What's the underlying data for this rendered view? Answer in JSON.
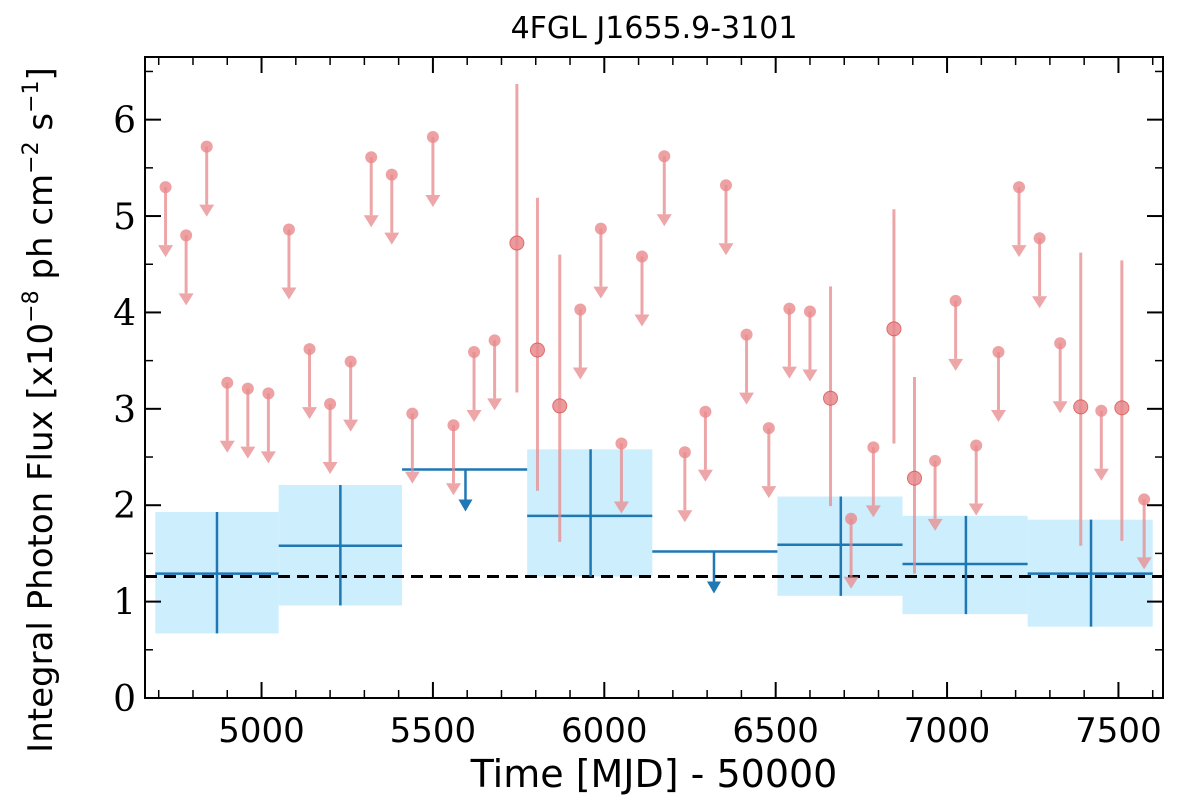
{
  "chart_data": {
    "type": "scatter",
    "title": "4FGL J1655.9-3101",
    "xlabel": "Time [MJD] - 50000",
    "ylabel_prefix": "Integral Photon Flux [x10",
    "ylabel_mid": " ph cm",
    "ylabel_end": " s",
    "ylabel_sup1": "−8",
    "ylabel_sup2": "−2",
    "ylabel_sup3": "−1",
    "ylabel_close": "]",
    "xlim": [
      4660,
      7630
    ],
    "ylim": [
      0,
      6.65
    ],
    "x_ticks": [
      5000,
      5500,
      6000,
      6500,
      7000,
      7500
    ],
    "x_tick_labels": [
      "5000",
      "5500",
      "6000",
      "6500",
      "7000",
      "7500"
    ],
    "y_ticks": [
      0,
      1,
      2,
      3,
      4,
      5,
      6
    ],
    "y_tick_labels": [
      "0",
      "1",
      "2",
      "3",
      "4",
      "5",
      "6"
    ],
    "mean_flux": 1.26,
    "colors": {
      "short_bins": "#e8898c",
      "long_bins": "#1f77b4",
      "long_band": "#cdeefd",
      "mean_line": "#000000"
    },
    "long_bins": [
      {
        "start": 4690,
        "end": 5050,
        "center": 4870,
        "flux": 1.29,
        "lo": 0.67,
        "hi": 1.93,
        "upper_limit": false
      },
      {
        "start": 5050,
        "end": 5410,
        "center": 5230,
        "flux": 1.58,
        "lo": 0.96,
        "hi": 2.21,
        "upper_limit": false
      },
      {
        "start": 5410,
        "end": 5775,
        "center": 5595,
        "flux": 2.37,
        "upper_limit": true
      },
      {
        "start": 5775,
        "end": 6140,
        "center": 5960,
        "flux": 1.89,
        "lo": 1.26,
        "hi": 2.58,
        "upper_limit": false
      },
      {
        "start": 6140,
        "end": 6505,
        "center": 6320,
        "flux": 1.52,
        "upper_limit": true
      },
      {
        "start": 6505,
        "end": 6870,
        "center": 6690,
        "flux": 1.59,
        "lo": 1.06,
        "hi": 2.09,
        "upper_limit": false
      },
      {
        "start": 6870,
        "end": 7235,
        "center": 7055,
        "flux": 1.39,
        "lo": 0.87,
        "hi": 1.89,
        "upper_limit": false
      },
      {
        "start": 7235,
        "end": 7600,
        "center": 7420,
        "flux": 1.29,
        "lo": 0.74,
        "hi": 1.85,
        "upper_limit": false
      }
    ],
    "short_bins": [
      {
        "x": 4720,
        "flux": 5.3,
        "upper_limit": true
      },
      {
        "x": 4780,
        "flux": 4.8,
        "upper_limit": true
      },
      {
        "x": 4840,
        "flux": 5.72,
        "upper_limit": true
      },
      {
        "x": 4900,
        "flux": 3.27,
        "upper_limit": true
      },
      {
        "x": 4960,
        "flux": 3.21,
        "upper_limit": true
      },
      {
        "x": 5020,
        "flux": 3.16,
        "upper_limit": true
      },
      {
        "x": 5080,
        "flux": 4.86,
        "upper_limit": true
      },
      {
        "x": 5140,
        "flux": 3.62,
        "upper_limit": true
      },
      {
        "x": 5200,
        "flux": 3.05,
        "upper_limit": true
      },
      {
        "x": 5260,
        "flux": 3.49,
        "upper_limit": true
      },
      {
        "x": 5320,
        "flux": 5.61,
        "upper_limit": true
      },
      {
        "x": 5380,
        "flux": 5.43,
        "upper_limit": true
      },
      {
        "x": 5440,
        "flux": 2.95,
        "upper_limit": true
      },
      {
        "x": 5500,
        "flux": 5.82,
        "upper_limit": true
      },
      {
        "x": 5560,
        "flux": 2.83,
        "upper_limit": true
      },
      {
        "x": 5620,
        "flux": 3.59,
        "upper_limit": true
      },
      {
        "x": 5680,
        "flux": 3.71,
        "upper_limit": true
      },
      {
        "x": 5745,
        "flux": 4.72,
        "lo": 3.17,
        "hi": 6.37,
        "upper_limit": false
      },
      {
        "x": 5805,
        "flux": 3.61,
        "lo": 2.15,
        "hi": 5.19,
        "upper_limit": false
      },
      {
        "x": 5870,
        "flux": 3.03,
        "lo": 1.62,
        "hi": 4.6,
        "upper_limit": false
      },
      {
        "x": 5930,
        "flux": 4.03,
        "upper_limit": true
      },
      {
        "x": 5990,
        "flux": 4.87,
        "upper_limit": true
      },
      {
        "x": 6050,
        "flux": 2.64,
        "upper_limit": true
      },
      {
        "x": 6110,
        "flux": 4.58,
        "upper_limit": true
      },
      {
        "x": 6175,
        "flux": 5.62,
        "upper_limit": true
      },
      {
        "x": 6235,
        "flux": 2.55,
        "upper_limit": true
      },
      {
        "x": 6295,
        "flux": 2.97,
        "upper_limit": true
      },
      {
        "x": 6355,
        "flux": 5.32,
        "upper_limit": true
      },
      {
        "x": 6415,
        "flux": 3.77,
        "upper_limit": true
      },
      {
        "x": 6480,
        "flux": 2.8,
        "upper_limit": true
      },
      {
        "x": 6540,
        "flux": 4.04,
        "upper_limit": true
      },
      {
        "x": 6600,
        "flux": 4.01,
        "upper_limit": true
      },
      {
        "x": 6660,
        "flux": 3.11,
        "lo": 1.99,
        "hi": 4.27,
        "upper_limit": false
      },
      {
        "x": 6720,
        "flux": 1.86,
        "upper_limit": true
      },
      {
        "x": 6785,
        "flux": 2.6,
        "upper_limit": true
      },
      {
        "x": 6845,
        "flux": 3.83,
        "lo": 2.64,
        "hi": 5.07,
        "upper_limit": false
      },
      {
        "x": 6905,
        "flux": 2.28,
        "lo": 1.29,
        "hi": 3.33,
        "upper_limit": false
      },
      {
        "x": 6965,
        "flux": 2.46,
        "upper_limit": true
      },
      {
        "x": 7025,
        "flux": 4.12,
        "upper_limit": true
      },
      {
        "x": 7085,
        "flux": 2.62,
        "upper_limit": true
      },
      {
        "x": 7150,
        "flux": 3.59,
        "upper_limit": true
      },
      {
        "x": 7210,
        "flux": 5.3,
        "upper_limit": true
      },
      {
        "x": 7270,
        "flux": 4.77,
        "upper_limit": true
      },
      {
        "x": 7330,
        "flux": 3.68,
        "upper_limit": true
      },
      {
        "x": 7390,
        "flux": 3.02,
        "lo": 1.58,
        "hi": 4.62,
        "upper_limit": false
      },
      {
        "x": 7450,
        "flux": 2.98,
        "upper_limit": true
      },
      {
        "x": 7510,
        "flux": 3.01,
        "lo": 1.63,
        "hi": 4.54,
        "upper_limit": false
      },
      {
        "x": 7575,
        "flux": 2.06,
        "upper_limit": true
      }
    ]
  }
}
